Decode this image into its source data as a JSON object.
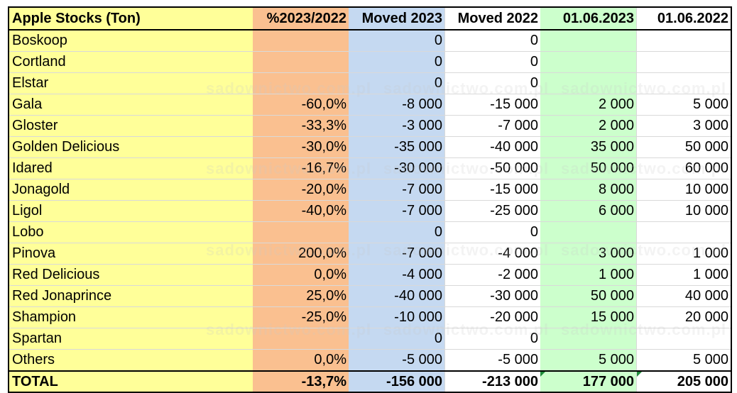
{
  "table": {
    "headers": [
      "Apple Stocks (Ton)",
      "%2023/2022",
      "Moved 2023",
      "Moved 2022",
      "01.06.2023",
      "01.06.2022"
    ],
    "rows": [
      [
        "Boskoop",
        "",
        "0",
        "0",
        "",
        ""
      ],
      [
        "Cortland",
        "",
        "0",
        "0",
        "",
        ""
      ],
      [
        "Elstar",
        "",
        "0",
        "0",
        "",
        ""
      ],
      [
        "Gala",
        "-60,0%",
        "-8 000",
        "-15 000",
        "2 000",
        "5 000"
      ],
      [
        "Gloster",
        "-33,3%",
        "-3 000",
        "-7 000",
        "2 000",
        "3 000"
      ],
      [
        "Golden Delicious",
        "-30,0%",
        "-35 000",
        "-40 000",
        "35 000",
        "50 000"
      ],
      [
        "Idared",
        "-16,7%",
        "-30 000",
        "-50 000",
        "50 000",
        "60 000"
      ],
      [
        "Jonagold",
        "-20,0%",
        "-7 000",
        "-15 000",
        "8 000",
        "10 000"
      ],
      [
        "Ligol",
        "-40,0%",
        "-7 000",
        "-25 000",
        "6 000",
        "10 000"
      ],
      [
        "Lobo",
        "",
        "0",
        "0",
        "",
        ""
      ],
      [
        "Pinova",
        "200,0%",
        "-7 000",
        "-4 000",
        "3 000",
        "1 000"
      ],
      [
        "Red Delicious",
        "0,0%",
        "-4 000",
        "-2 000",
        "1 000",
        "1 000"
      ],
      [
        "Red Jonaprince",
        "25,0%",
        "-40 000",
        "-30 000",
        "50 000",
        "40 000"
      ],
      [
        "Shampion",
        "-25,0%",
        "-10 000",
        "-20 000",
        "15 000",
        "20 000"
      ],
      [
        "Spartan",
        "",
        "0",
        "0",
        "",
        ""
      ],
      [
        "Others",
        "0,0%",
        "-5 000",
        "-5 000",
        "5 000",
        "5 000"
      ]
    ],
    "total": [
      "TOTAL",
      "-13,7%",
      "-156 000",
      "-213 000",
      "177 000",
      "205 000"
    ]
  },
  "watermark": "sadownictwo.com.pl",
  "colors": {
    "variety_column": "#ffff99",
    "percent_column": "#fac090",
    "moved_2023_column": "#c5d9f1",
    "stock_2023_column": "#ccffcc",
    "comment_flag": "#1e8c3a"
  }
}
